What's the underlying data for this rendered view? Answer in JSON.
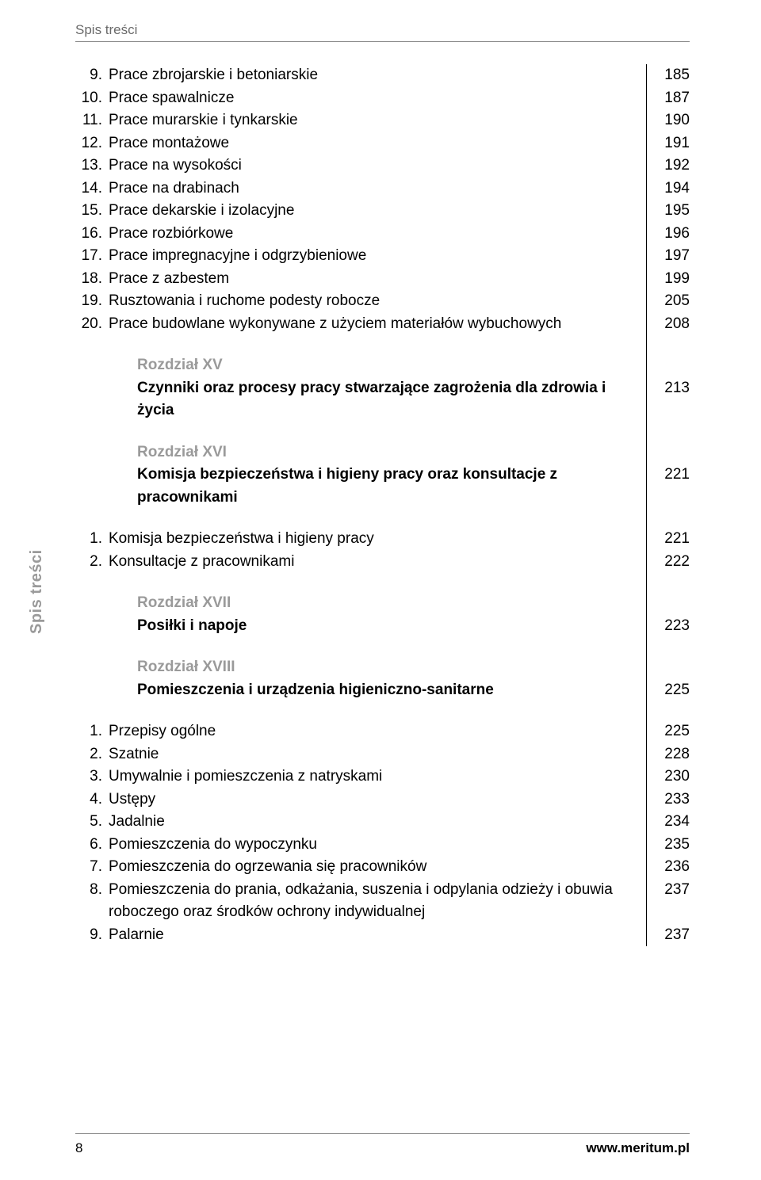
{
  "running_head": "Spis treści",
  "side_label": "Spis treści",
  "footer": {
    "page_number": "8",
    "url": "www.meritum.pl"
  },
  "colors": {
    "text": "#000000",
    "muted": "#6a6a6a",
    "grey": "#9a9a9a",
    "rule": "#8a8a8a",
    "bg": "#ffffff"
  },
  "rows": [
    {
      "type": "item",
      "num": "9.",
      "label": "Prace zbrojarskie i betoniarskie",
      "page": "185"
    },
    {
      "type": "item",
      "num": "10.",
      "label": "Prace spawalnicze",
      "page": "187"
    },
    {
      "type": "item",
      "num": "11.",
      "label": "Prace murarskie i tynkarskie",
      "page": "190"
    },
    {
      "type": "item",
      "num": "12.",
      "label": "Prace montażowe",
      "page": "191"
    },
    {
      "type": "item",
      "num": "13.",
      "label": "Prace na wysokości",
      "page": "192"
    },
    {
      "type": "item",
      "num": "14.",
      "label": "Prace na drabinach",
      "page": "194"
    },
    {
      "type": "item",
      "num": "15.",
      "label": "Prace dekarskie i izolacyjne",
      "page": "195"
    },
    {
      "type": "item",
      "num": "16.",
      "label": "Prace rozbiórkowe",
      "page": "196"
    },
    {
      "type": "item",
      "num": "17.",
      "label": "Prace impregnacyjne i odgrzybieniowe",
      "page": "197"
    },
    {
      "type": "item",
      "num": "18.",
      "label": "Prace z azbestem",
      "page": "199"
    },
    {
      "type": "item",
      "num": "19.",
      "label": "Rusztowania i ruchome podesty robocze",
      "page": "205"
    },
    {
      "type": "item",
      "num": "20.",
      "label": "Prace budowlane wykonywane z użyciem materiałów wybuchowych",
      "page": "208"
    },
    {
      "type": "spacer"
    },
    {
      "type": "chapter",
      "label": "Rozdział XV"
    },
    {
      "type": "title",
      "label": "Czynniki oraz procesy pracy stwarzające zagrożenia dla zdrowia i życia",
      "page": "213"
    },
    {
      "type": "spacer"
    },
    {
      "type": "chapter",
      "label": "Rozdział XVI"
    },
    {
      "type": "title",
      "label": "Komisja bezpieczeństwa i higieny pracy oraz konsultacje z pracownikami",
      "page": "221"
    },
    {
      "type": "spacer"
    },
    {
      "type": "item",
      "num": "1.",
      "label": "Komisja bezpieczeństwa i higieny pracy",
      "page": "221"
    },
    {
      "type": "item",
      "num": "2.",
      "label": "Konsultacje z pracownikami",
      "page": "222"
    },
    {
      "type": "spacer"
    },
    {
      "type": "chapter",
      "label": "Rozdział XVII"
    },
    {
      "type": "title",
      "label": "Posiłki i napoje",
      "page": "223"
    },
    {
      "type": "spacer"
    },
    {
      "type": "chapter",
      "label": "Rozdział XVIII"
    },
    {
      "type": "title",
      "label": "Pomieszczenia i urządzenia higieniczno-sanitarne",
      "page": "225"
    },
    {
      "type": "spacer"
    },
    {
      "type": "item",
      "num": "1.",
      "label": "Przepisy ogólne",
      "page": "225"
    },
    {
      "type": "item",
      "num": "2.",
      "label": "Szatnie",
      "page": "228"
    },
    {
      "type": "item",
      "num": "3.",
      "label": "Umywalnie i pomieszczenia z natryskami",
      "page": "230"
    },
    {
      "type": "item",
      "num": "4.",
      "label": "Ustępy",
      "page": "233"
    },
    {
      "type": "item",
      "num": "5.",
      "label": "Jadalnie",
      "page": "234"
    },
    {
      "type": "item",
      "num": "6.",
      "label": "Pomieszczenia do wypoczynku",
      "page": "235"
    },
    {
      "type": "item",
      "num": "7.",
      "label": "Pomieszczenia do ogrzewania się pracowników",
      "page": "236"
    },
    {
      "type": "item",
      "num": "8.",
      "label": "Pomieszczenia do prania, odkażania, suszenia i odpylania odzieży i obuwia roboczego oraz środków ochrony indywidualnej",
      "page": "237"
    },
    {
      "type": "item",
      "num": "9.",
      "label": "Palarnie",
      "page": "237"
    }
  ]
}
